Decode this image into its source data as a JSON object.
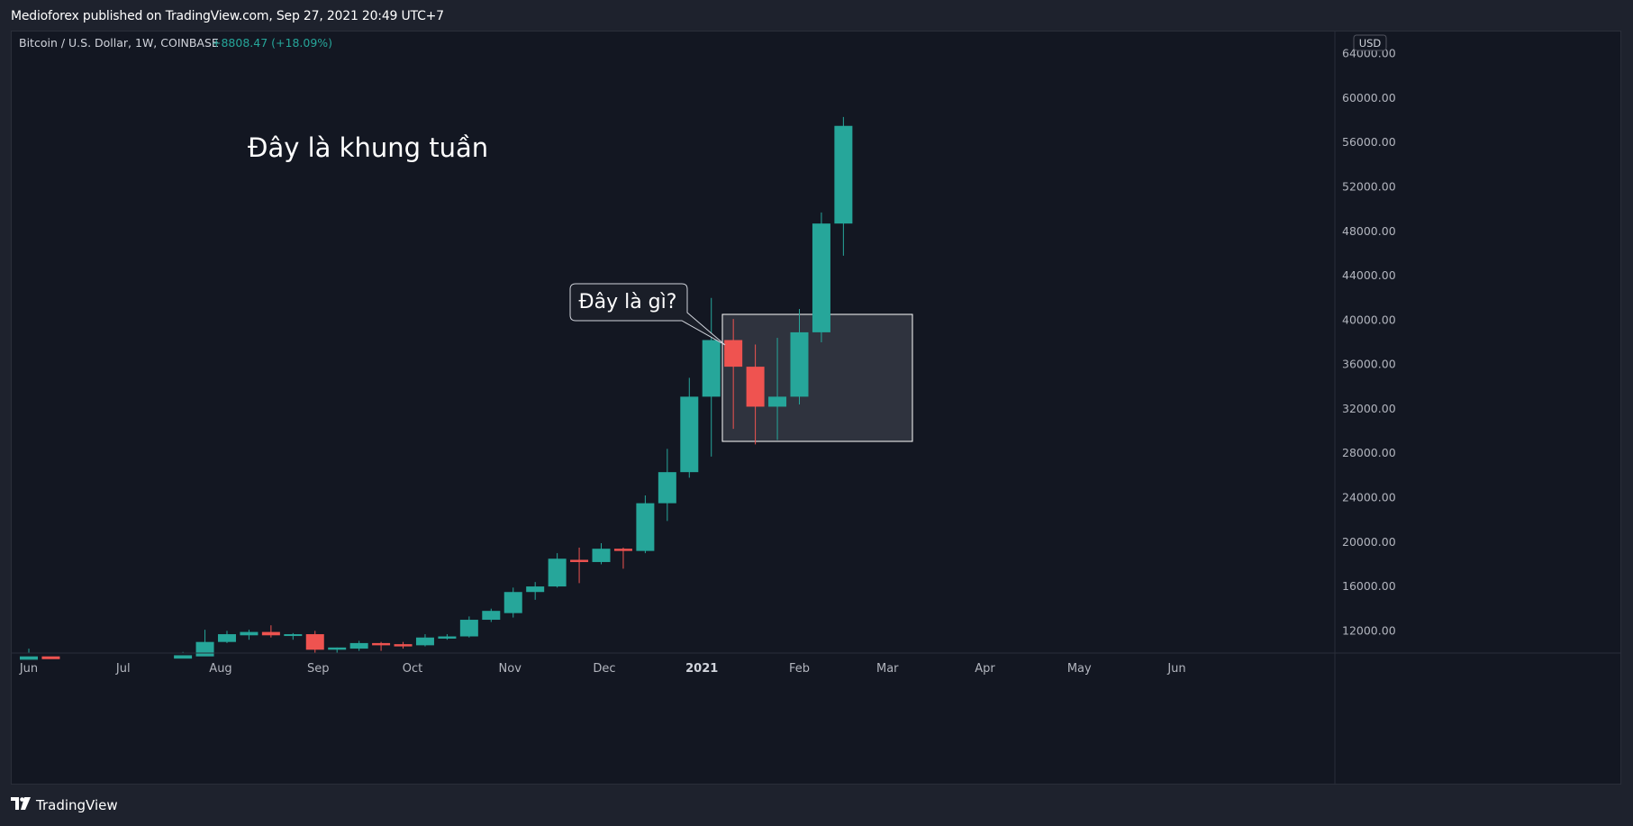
{
  "header": {
    "published": "Medioforex published on TradingView.com, Sep 27, 2021 20:49 UTC+7"
  },
  "footer": {
    "brand": "TradingView"
  },
  "symbol": {
    "title": "Bitcoin / U.S. Dollar, 1W, COINBASE",
    "change": "+8808.47 (+18.09%)"
  },
  "currency_badge": "USD",
  "annotations": {
    "main_text": "Đây là khung tuần",
    "callout_text": "Đây là gì?"
  },
  "colors": {
    "up": "#26a69a",
    "down": "#ef5350",
    "background": "#131722",
    "grid": "#2a2e39",
    "text": "#b2b5be"
  },
  "chart_data": {
    "type": "candlestick",
    "title": "",
    "ylim": [
      10000,
      66000
    ],
    "y_ticks": [
      12000,
      16000,
      20000,
      24000,
      28000,
      32000,
      36000,
      40000,
      44000,
      48000,
      52000,
      56000,
      60000,
      64000
    ],
    "y_tick_labels": [
      "12000.00",
      "16000.00",
      "20000.00",
      "24000.00",
      "28000.00",
      "32000.00",
      "36000.00",
      "40000.00",
      "44000.00",
      "48000.00",
      "52000.00",
      "56000.00",
      "60000.00",
      "64000.00"
    ],
    "x_tick_labels": [
      "Jun",
      "Jul",
      "Aug",
      "Sep",
      "Oct",
      "Nov",
      "Dec",
      "2021",
      "Feb",
      "Mar",
      "Apr",
      "May",
      "Jun"
    ],
    "x_tick_dates": [
      "2020-06-01",
      "2020-07-01",
      "2020-08-01",
      "2020-09-01",
      "2020-10-01",
      "2020-11-01",
      "2020-12-01",
      "2021-01-01",
      "2021-02-01",
      "2021-03-01",
      "2021-04-01",
      "2021-05-01",
      "2021-06-01"
    ],
    "candles": [
      {
        "date": "2020-06-01",
        "open": 9400,
        "high": 10400,
        "low": 9300,
        "close": 9700
      },
      {
        "date": "2020-06-08",
        "open": 9700,
        "high": 10000,
        "low": 9400,
        "close": 9450
      },
      {
        "date": "2020-07-20",
        "open": 9500,
        "high": 10100,
        "low": 9400,
        "close": 9800
      },
      {
        "date": "2020-07-27",
        "open": 9700,
        "high": 12100,
        "low": 9600,
        "close": 11000
      },
      {
        "date": "2020-08-03",
        "open": 11000,
        "high": 12000,
        "low": 10900,
        "close": 11700
      },
      {
        "date": "2020-08-10",
        "open": 11600,
        "high": 12100,
        "low": 11200,
        "close": 11900
      },
      {
        "date": "2020-08-17",
        "open": 11900,
        "high": 12500,
        "low": 11400,
        "close": 11600
      },
      {
        "date": "2020-08-24",
        "open": 11600,
        "high": 11800,
        "low": 11200,
        "close": 11700
      },
      {
        "date": "2020-08-31",
        "open": 11700,
        "high": 12000,
        "low": 10000,
        "close": 10300
      },
      {
        "date": "2020-09-07",
        "open": 10300,
        "high": 10500,
        "low": 9900,
        "close": 10500
      },
      {
        "date": "2020-09-14",
        "open": 10400,
        "high": 11100,
        "low": 10200,
        "close": 10900
      },
      {
        "date": "2020-09-21",
        "open": 10900,
        "high": 11000,
        "low": 10200,
        "close": 10700
      },
      {
        "date": "2020-09-28",
        "open": 10800,
        "high": 11000,
        "low": 10400,
        "close": 10600
      },
      {
        "date": "2020-10-05",
        "open": 10700,
        "high": 11700,
        "low": 10600,
        "close": 11400
      },
      {
        "date": "2020-10-12",
        "open": 11300,
        "high": 11700,
        "low": 11200,
        "close": 11500
      },
      {
        "date": "2020-10-19",
        "open": 11500,
        "high": 13300,
        "low": 11400,
        "close": 13000
      },
      {
        "date": "2020-10-26",
        "open": 13000,
        "high": 14000,
        "low": 12800,
        "close": 13800
      },
      {
        "date": "2020-11-02",
        "open": 13600,
        "high": 15900,
        "low": 13200,
        "close": 15500
      },
      {
        "date": "2020-11-09",
        "open": 15500,
        "high": 16400,
        "low": 14800,
        "close": 16000
      },
      {
        "date": "2020-11-16",
        "open": 16000,
        "high": 19000,
        "low": 15900,
        "close": 18500
      },
      {
        "date": "2020-11-23",
        "open": 18400,
        "high": 19500,
        "low": 16300,
        "close": 18200
      },
      {
        "date": "2020-11-30",
        "open": 18200,
        "high": 19900,
        "low": 18000,
        "close": 19400
      },
      {
        "date": "2020-12-07",
        "open": 19400,
        "high": 19500,
        "low": 17600,
        "close": 19200
      },
      {
        "date": "2020-12-14",
        "open": 19200,
        "high": 24200,
        "low": 19000,
        "close": 23500
      },
      {
        "date": "2020-12-21",
        "open": 23500,
        "high": 28400,
        "low": 21900,
        "close": 26300
      },
      {
        "date": "2020-12-28",
        "open": 26300,
        "high": 34800,
        "low": 25800,
        "close": 33100
      },
      {
        "date": "2021-01-04",
        "open": 33100,
        "high": 42000,
        "low": 27700,
        "close": 38200
      },
      {
        "date": "2021-01-11",
        "open": 38200,
        "high": 40100,
        "low": 30200,
        "close": 35800
      },
      {
        "date": "2021-01-18",
        "open": 35800,
        "high": 37800,
        "low": 28800,
        "close": 32200
      },
      {
        "date": "2021-01-25",
        "open": 32200,
        "high": 38400,
        "low": 29200,
        "close": 33100
      },
      {
        "date": "2021-02-01",
        "open": 33100,
        "high": 41000,
        "low": 32400,
        "close": 38900
      },
      {
        "date": "2021-02-08",
        "open": 38900,
        "high": 49700,
        "low": 38000,
        "close": 48700
      },
      {
        "date": "2021-02-15",
        "open": 48700,
        "high": 58300,
        "low": 45800,
        "close": 57500
      }
    ]
  }
}
